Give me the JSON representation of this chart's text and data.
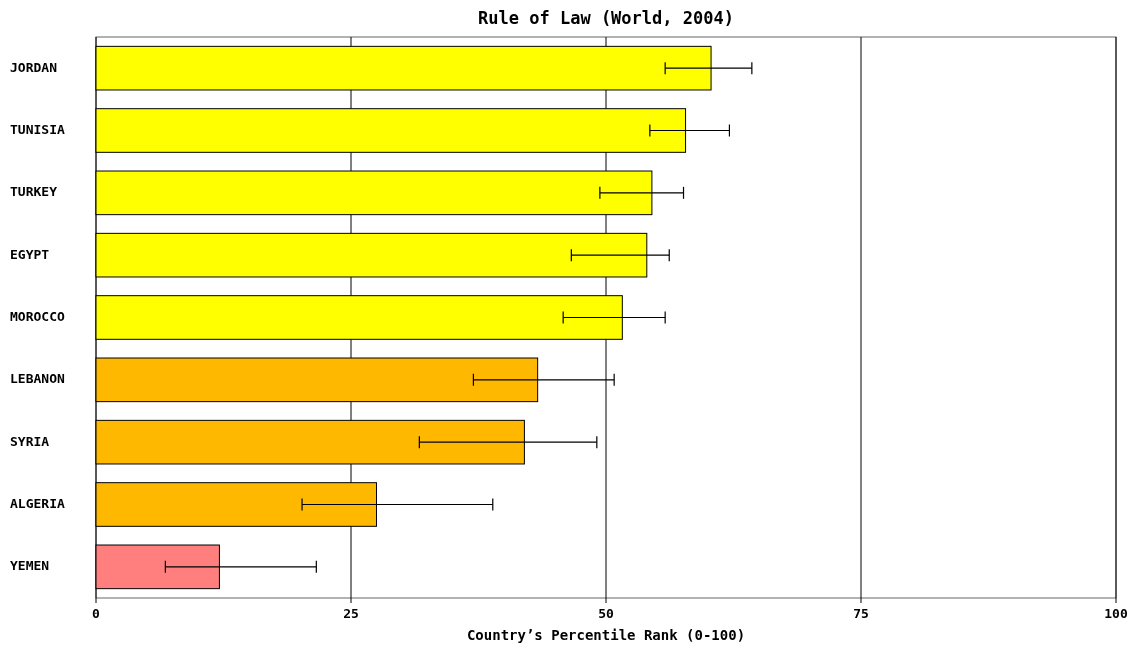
{
  "chart_data": {
    "type": "bar",
    "orientation": "horizontal",
    "title": "Rule of Law (World, 2004)",
    "xlabel": "Country’s Percentile Rank (0-100)",
    "categories": [
      "JORDAN",
      "TUNISIA",
      "TURKEY",
      "EGYPT",
      "MOROCCO",
      "LEBANON",
      "SYRIA",
      "ALGERIA",
      "YEMEN"
    ],
    "values": [
      60.3,
      57.8,
      54.5,
      54.0,
      51.6,
      43.3,
      42.0,
      27.5,
      12.1
    ],
    "colors": [
      "#ffff00",
      "#ffff00",
      "#ffff00",
      "#ffff00",
      "#ffff00",
      "#ffb800",
      "#ffb800",
      "#ffb800",
      "#ff7f7f"
    ],
    "errors": [
      [
        55.8,
        64.3
      ],
      [
        54.3,
        62.1
      ],
      [
        49.4,
        57.6
      ],
      [
        46.6,
        56.2
      ],
      [
        45.8,
        55.8
      ],
      [
        37.0,
        50.8
      ],
      [
        31.7,
        49.1
      ],
      [
        20.2,
        38.9
      ],
      [
        6.8,
        21.6
      ]
    ],
    "xlim": [
      0,
      100
    ],
    "xticks": [
      0,
      25,
      50,
      75,
      100
    ],
    "grid": "x"
  }
}
